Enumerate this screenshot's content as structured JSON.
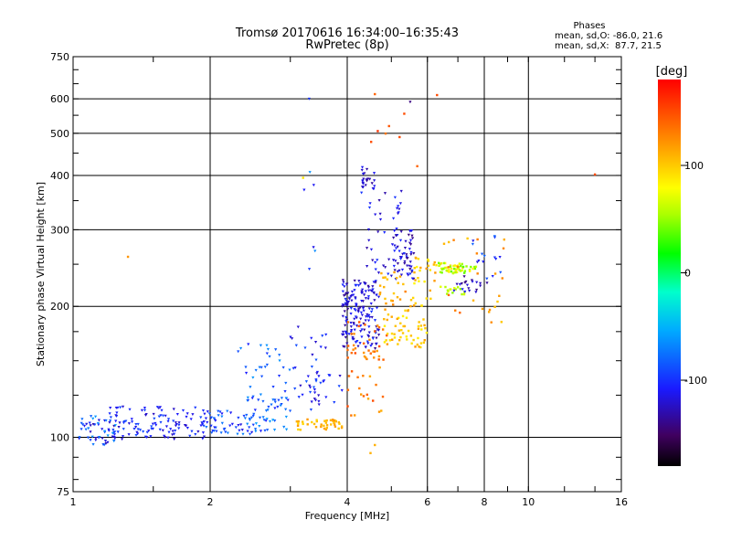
{
  "chart_data": {
    "type": "scatter",
    "title_line1": "Tromsø 20170616 16:34:00–16:35:43",
    "title_line2": "RwPretec (8p)",
    "phases": {
      "heading": "Phases",
      "line_o": "mean, sd,O: -86.0, 21.6",
      "line_x": "mean, sd,X:  87.7, 21.5"
    },
    "xlabel": "Frequency [MHz]",
    "ylabel": "Stationary phase Virtual Height [km]",
    "x_scale": "log",
    "y_scale": "log",
    "xlim": [
      1,
      16
    ],
    "ylim": [
      75,
      750
    ],
    "x_ticks": [
      1,
      2,
      4,
      6,
      8,
      10,
      16
    ],
    "x_tick_labels": [
      "1",
      "2",
      "4",
      "6",
      "8",
      "10",
      "16"
    ],
    "y_ticks": [
      75,
      100,
      200,
      300,
      400,
      500,
      600,
      750
    ],
    "y_tick_labels": [
      "75",
      "100",
      "200",
      "300",
      "400",
      "500",
      "600",
      "750"
    ],
    "grid_x": [
      2,
      4,
      6,
      8,
      10
    ],
    "grid_y": [
      100,
      200,
      300,
      400,
      500,
      600
    ],
    "colorbar": {
      "label": "[deg]",
      "range": [
        -180,
        180
      ],
      "ticks": [
        100,
        0,
        -100
      ],
      "tick_labels": [
        "100",
        "0",
        "-100"
      ]
    },
    "clusters": [
      {
        "fmin": 1.03,
        "fmax": 1.25,
        "hmin": 96,
        "hmax": 112,
        "pmin": -140,
        "pmax": -60,
        "n": 55
      },
      {
        "fmin": 1.2,
        "fmax": 1.95,
        "hmin": 99,
        "hmax": 118,
        "pmin": -130,
        "pmax": -90,
        "n": 110
      },
      {
        "fmin": 1.9,
        "fmax": 2.5,
        "hmin": 101,
        "hmax": 115,
        "pmin": -120,
        "pmax": -70,
        "n": 55
      },
      {
        "fmin": 2.4,
        "fmax": 3.0,
        "hmin": 103,
        "hmax": 125,
        "pmin": -110,
        "pmax": -55,
        "n": 45
      },
      {
        "fmin": 2.3,
        "fmax": 3.0,
        "hmin": 120,
        "hmax": 165,
        "pmin": -110,
        "pmax": -60,
        "n": 30
      },
      {
        "fmin": 3.0,
        "fmax": 3.6,
        "hmin": 120,
        "hmax": 180,
        "pmin": -130,
        "pmax": -80,
        "n": 30
      },
      {
        "fmin": 3.1,
        "fmax": 3.9,
        "hmin": 104,
        "hmax": 110,
        "pmin": 95,
        "pmax": 120,
        "n": 40
      },
      {
        "fmin": 3.3,
        "fmax": 3.9,
        "hmin": 115,
        "hmax": 145,
        "pmin": -130,
        "pmax": -90,
        "n": 20
      },
      {
        "fmin": 3.9,
        "fmax": 4.7,
        "hmin": 160,
        "hmax": 230,
        "pmin": -145,
        "pmax": -100,
        "n": 170
      },
      {
        "fmin": 4.0,
        "fmax": 4.9,
        "hmin": 150,
        "hmax": 185,
        "pmin": 115,
        "pmax": 150,
        "n": 35
      },
      {
        "fmin": 4.0,
        "fmax": 4.8,
        "hmin": 110,
        "hmax": 145,
        "pmin": 110,
        "pmax": 150,
        "n": 20
      },
      {
        "fmin": 4.3,
        "fmax": 4.6,
        "hmin": 370,
        "hmax": 420,
        "pmin": -150,
        "pmax": -110,
        "n": 25
      },
      {
        "fmin": 4.4,
        "fmax": 5.3,
        "hmin": 230,
        "hmax": 370,
        "pmin": -140,
        "pmax": -100,
        "n": 40
      },
      {
        "fmin": 5.0,
        "fmax": 5.6,
        "hmin": 230,
        "hmax": 300,
        "pmin": -150,
        "pmax": -100,
        "n": 55
      },
      {
        "fmin": 4.8,
        "fmax": 6.0,
        "hmin": 160,
        "hmax": 210,
        "pmin": 85,
        "pmax": 120,
        "n": 65
      },
      {
        "fmin": 4.7,
        "fmax": 5.5,
        "hmin": 200,
        "hmax": 240,
        "pmin": 100,
        "pmax": 130,
        "n": 20
      },
      {
        "fmin": 5.6,
        "fmax": 6.3,
        "hmin": 205,
        "hmax": 260,
        "pmin": 80,
        "pmax": 120,
        "n": 25
      },
      {
        "fmin": 6.3,
        "fmax": 7.7,
        "hmin": 238,
        "hmax": 252,
        "pmin": 35,
        "pmax": 95,
        "n": 55
      },
      {
        "fmin": 6.4,
        "fmax": 7.3,
        "hmin": 212,
        "hmax": 222,
        "pmin": 40,
        "pmax": 80,
        "n": 15
      },
      {
        "fmin": 6.8,
        "fmax": 8.2,
        "hmin": 215,
        "hmax": 235,
        "pmin": -150,
        "pmax": -100,
        "n": 20
      },
      {
        "fmin": 7.5,
        "fmax": 8.8,
        "hmin": 230,
        "hmax": 290,
        "pmin": -130,
        "pmax": -80,
        "n": 15
      },
      {
        "fmin": 6.0,
        "fmax": 9.2,
        "hmin": 180,
        "hmax": 290,
        "pmin": 100,
        "pmax": 140,
        "n": 25
      },
      {
        "fmin": 3.2,
        "fmax": 3.4,
        "hmin": 230,
        "hmax": 460,
        "pmin": -120,
        "pmax": -60,
        "n": 6
      },
      {
        "fmin": 4.5,
        "fmax": 5.5,
        "hmin": 450,
        "hmax": 620,
        "pmin": 130,
        "pmax": 160,
        "n": 6
      }
    ],
    "points": [
      {
        "f": 1.32,
        "h": 260,
        "p": 120
      },
      {
        "f": 3.3,
        "h": 600,
        "p": -100
      },
      {
        "f": 4.6,
        "h": 615,
        "p": 140
      },
      {
        "f": 5.5,
        "h": 590,
        "p": -150
      },
      {
        "f": 6.3,
        "h": 612,
        "p": 150
      },
      {
        "f": 5.7,
        "h": 420,
        "p": 140
      },
      {
        "f": 14.0,
        "h": 402,
        "p": 150
      },
      {
        "f": 4.5,
        "h": 92,
        "p": 110
      },
      {
        "f": 4.6,
        "h": 96,
        "p": 110
      },
      {
        "f": 4.3,
        "h": 365,
        "p": -100
      },
      {
        "f": 3.2,
        "h": 395,
        "p": 90
      }
    ]
  }
}
